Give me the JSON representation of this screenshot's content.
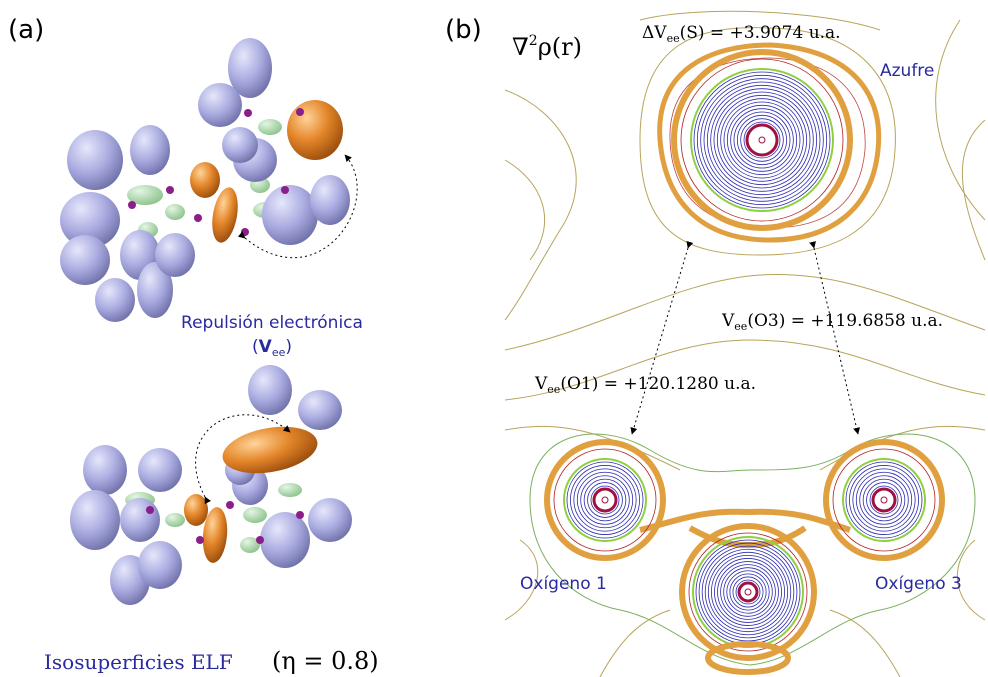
{
  "panels": [
    {
      "label": "(a)",
      "caption_top": {
        "text": "Repulsión electrónica",
        "open": "(",
        "symbol": "V",
        "subscript": "ee",
        "close": ")"
      },
      "caption_bottom": {
        "text": "Isosuperficies ELF",
        "parameter": "(η = 0.8)"
      }
    },
    {
      "label": "(b)",
      "title": {
        "base": "∇",
        "superscript": "2",
        "rest": "ρ(r)"
      },
      "annotations": [
        {
          "symbol": "ΔV",
          "subscript": "ee",
          "text": "(S) = +3.9074 u.a."
        },
        {
          "symbol": "V",
          "subscript": "ee",
          "text": "(O3) = +119.6858 u.a."
        },
        {
          "symbol": "V",
          "subscript": "ee",
          "text": "(O1) = +120.1280 u.a."
        }
      ],
      "atoms": [
        "Azufre",
        "Oxígeno 1",
        "Oxígeno 3"
      ]
    }
  ]
}
